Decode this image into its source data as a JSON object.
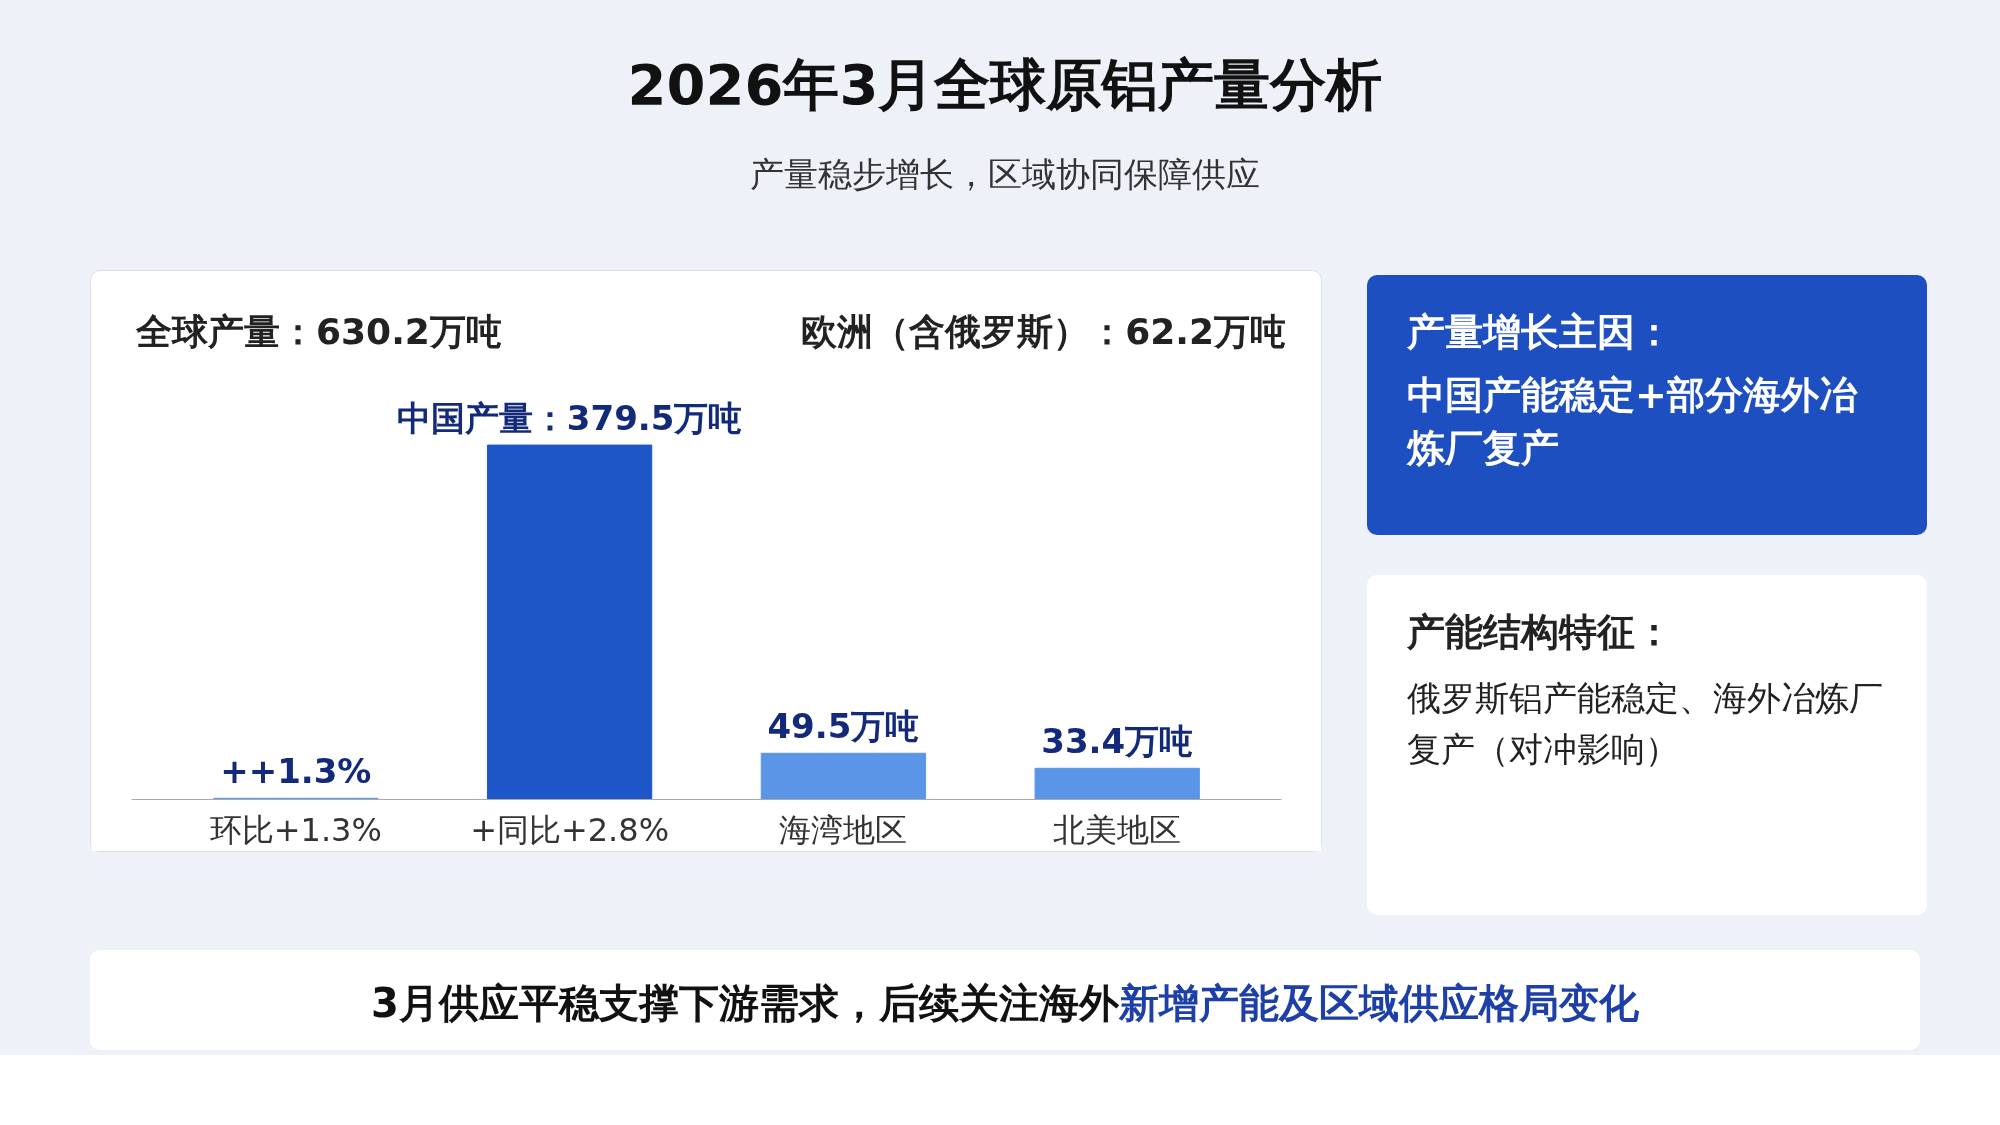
{
  "chart_data": {
    "type": "bar",
    "title": "2026年3月全球原铝产量分析",
    "subtitle": "产量稳步增长，区域协同保障供应",
    "categories": [
      "环比+1.3%",
      "+同比+2.8%",
      "海湾地区",
      "北美地区"
    ],
    "values": [
      1.3,
      379.5,
      49.5,
      33.4
    ],
    "colors": [
      "#5b95e8",
      "#1e56c8",
      "#5b95e8",
      "#5b95e8"
    ],
    "value_labels": [
      "++1.3%",
      "中国产量：379.5万吨",
      "49.5万吨",
      "33.4万吨"
    ],
    "annotations": [
      "全球产量：630.2万吨",
      "欧洲（含俄罗斯）：62.2万吨",
      "产量增长主因：",
      "中国产能稳定+部分海外冶炼厂复产",
      "产能结构特征：",
      "俄罗斯铝产能稳定、海外冶炼厂复产（对冲影响）",
      "3月供应平稳支撑下游需求，后续关注海外",
      "新增产能及区域供应格局变化"
    ]
  }
}
